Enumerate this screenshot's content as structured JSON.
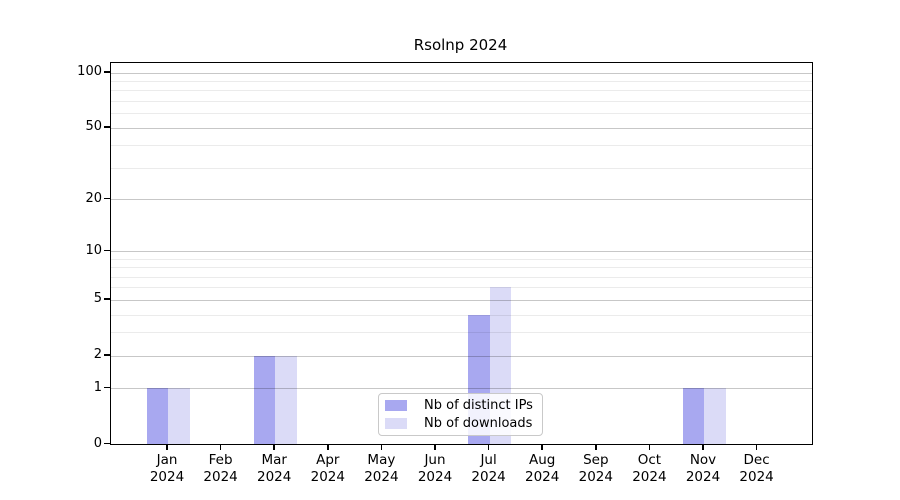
{
  "chart_data": {
    "type": "bar",
    "title": "Rsolnp 2024",
    "x_axis": {
      "months": [
        "Jan",
        "Feb",
        "Mar",
        "Apr",
        "May",
        "Jun",
        "Jul",
        "Aug",
        "Sep",
        "Oct",
        "Nov",
        "Dec"
      ],
      "year": "2024"
    },
    "series": [
      {
        "name": "Nb of distinct IPs",
        "color": "#a8a8f0",
        "values": [
          1,
          0,
          2,
          0,
          0,
          0,
          4,
          0,
          0,
          0,
          1,
          0
        ]
      },
      {
        "name": "Nb of downloads",
        "color": "#dbdbf7",
        "values": [
          1,
          0,
          2,
          0,
          0,
          0,
          6,
          0,
          0,
          0,
          1,
          0
        ]
      }
    ],
    "y_axis": {
      "scale": "log1p",
      "ylim": [
        0,
        113
      ],
      "tick_values": [
        0,
        1,
        2,
        5,
        10,
        20,
        50,
        100
      ],
      "minor_gridline_values": [
        3,
        4,
        6,
        7,
        8,
        9,
        30,
        40,
        60,
        70,
        80,
        90
      ]
    },
    "grid": true,
    "legend_position": "bottom-center"
  },
  "colors": {
    "axis": "#000000",
    "major_grid": "#c7c7c7",
    "minor_grid": "#ebebeb",
    "background": "#ffffff"
  }
}
